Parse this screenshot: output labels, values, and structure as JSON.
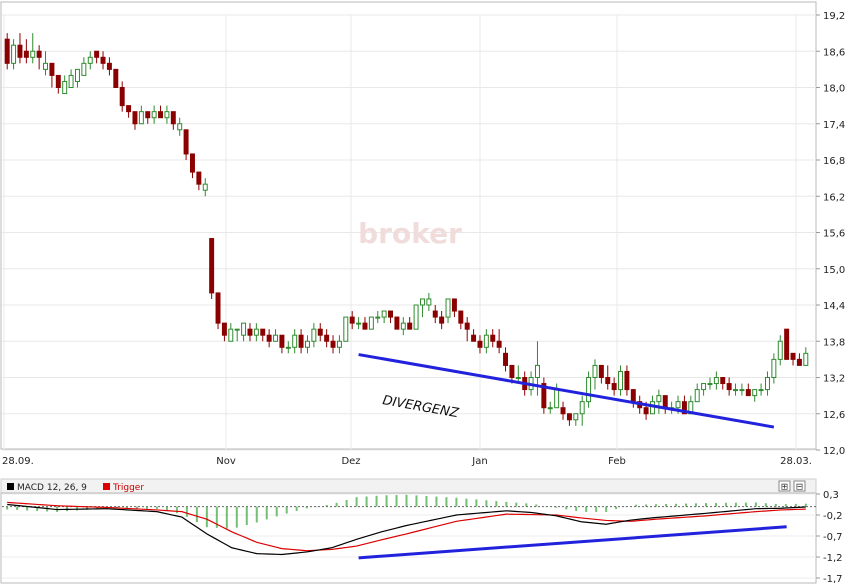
{
  "chart_data": [
    {
      "type": "candlestick",
      "title": "",
      "watermark": "broker",
      "annotation": "DIVERGENZ",
      "x_ticks": [
        "28.09.",
        "Nov",
        "Dez",
        "Jan",
        "Feb",
        "28.03."
      ],
      "y_ticks": [
        "19,2",
        "18,6",
        "18,0",
        "17,4",
        "16,8",
        "16,2",
        "15,6",
        "15,0",
        "14,4",
        "13,8",
        "13,2",
        "12,6",
        "12,0"
      ],
      "ylim": [
        12.0,
        19.2
      ],
      "grid": true,
      "colors": {
        "up": "#2e8b2e",
        "down": "#8b0000",
        "divergence": "#2222dd",
        "grid": "#e8e8e8"
      },
      "divergence_line": {
        "from": [
          55,
          13.58
        ],
        "to": [
          120,
          12.38
        ]
      },
      "candles": [
        [
          18.8,
          18.9,
          18.3,
          18.4
        ],
        [
          18.4,
          18.8,
          18.3,
          18.7
        ],
        [
          18.7,
          18.9,
          18.4,
          18.5
        ],
        [
          18.6,
          18.8,
          18.4,
          18.5
        ],
        [
          18.5,
          18.9,
          18.4,
          18.6
        ],
        [
          18.6,
          18.7,
          18.3,
          18.5
        ],
        [
          18.3,
          18.6,
          18.2,
          18.4
        ],
        [
          18.4,
          18.4,
          18.0,
          18.2
        ],
        [
          18.2,
          18.2,
          17.9,
          18.0
        ],
        [
          17.9,
          18.2,
          17.9,
          18.1
        ],
        [
          18.0,
          18.3,
          18.0,
          18.2
        ],
        [
          18.1,
          18.3,
          18.0,
          18.3
        ],
        [
          18.2,
          18.5,
          18.2,
          18.4
        ],
        [
          18.4,
          18.6,
          18.3,
          18.5
        ],
        [
          18.6,
          18.6,
          18.4,
          18.5
        ],
        [
          18.5,
          18.6,
          18.3,
          18.4
        ],
        [
          18.4,
          18.5,
          18.2,
          18.3
        ],
        [
          18.3,
          18.3,
          18.0,
          18.0
        ],
        [
          18.0,
          18.1,
          17.6,
          17.7
        ],
        [
          17.7,
          17.7,
          17.5,
          17.6
        ],
        [
          17.6,
          17.6,
          17.3,
          17.4
        ],
        [
          17.4,
          17.7,
          17.4,
          17.6
        ],
        [
          17.6,
          17.6,
          17.4,
          17.5
        ],
        [
          17.5,
          17.7,
          17.4,
          17.6
        ],
        [
          17.6,
          17.7,
          17.5,
          17.5
        ],
        [
          17.5,
          17.7,
          17.4,
          17.6
        ],
        [
          17.6,
          17.6,
          17.3,
          17.4
        ],
        [
          17.3,
          17.5,
          17.2,
          17.4
        ],
        [
          17.3,
          17.3,
          16.8,
          16.9
        ],
        [
          16.9,
          16.9,
          16.5,
          16.6
        ],
        [
          16.6,
          16.6,
          16.3,
          16.4
        ],
        [
          16.3,
          16.5,
          16.2,
          16.4
        ],
        [
          15.5,
          15.5,
          14.5,
          14.6
        ],
        [
          14.6,
          14.6,
          14.0,
          14.1
        ],
        [
          14.1,
          14.1,
          13.8,
          13.9
        ],
        [
          13.8,
          14.1,
          13.8,
          14.0
        ],
        [
          14.0,
          14.0,
          13.8,
          14.0
        ],
        [
          13.9,
          14.1,
          13.8,
          14.1
        ],
        [
          14.0,
          14.1,
          13.8,
          13.9
        ],
        [
          13.9,
          14.1,
          13.8,
          14.0
        ],
        [
          14.0,
          14.0,
          13.8,
          13.9
        ],
        [
          13.9,
          14.0,
          13.7,
          13.8
        ],
        [
          13.8,
          14.0,
          13.8,
          13.9
        ],
        [
          13.9,
          13.9,
          13.6,
          13.7
        ],
        [
          13.7,
          13.8,
          13.6,
          13.7
        ],
        [
          13.7,
          14.0,
          13.6,
          13.9
        ],
        [
          13.9,
          14.0,
          13.6,
          13.7
        ],
        [
          13.7,
          13.9,
          13.6,
          13.8
        ],
        [
          13.8,
          14.1,
          13.7,
          14.0
        ],
        [
          14.0,
          14.1,
          13.8,
          13.9
        ],
        [
          13.9,
          14.0,
          13.7,
          13.8
        ],
        [
          13.8,
          13.9,
          13.6,
          13.7
        ],
        [
          13.7,
          13.9,
          13.6,
          13.8
        ],
        [
          13.8,
          14.2,
          13.8,
          14.2
        ],
        [
          14.2,
          14.3,
          14.0,
          14.1
        ],
        [
          14.1,
          14.2,
          14.0,
          14.1
        ],
        [
          14.1,
          14.2,
          14.0,
          14.0
        ],
        [
          14.0,
          14.2,
          14.0,
          14.2
        ],
        [
          14.2,
          14.3,
          14.1,
          14.2
        ],
        [
          14.2,
          14.3,
          14.1,
          14.3
        ],
        [
          14.3,
          14.3,
          14.1,
          14.2
        ],
        [
          14.2,
          14.2,
          14.0,
          14.0
        ],
        [
          14.0,
          14.2,
          13.9,
          14.1
        ],
        [
          14.1,
          14.2,
          14.0,
          14.0
        ],
        [
          14.0,
          14.4,
          14.0,
          14.4
        ],
        [
          14.4,
          14.5,
          14.2,
          14.5
        ],
        [
          14.4,
          14.6,
          14.3,
          14.5
        ],
        [
          14.3,
          14.4,
          14.1,
          14.2
        ],
        [
          14.2,
          14.3,
          14.0,
          14.1
        ],
        [
          14.2,
          14.5,
          14.1,
          14.5
        ],
        [
          14.5,
          14.5,
          14.2,
          14.3
        ],
        [
          14.3,
          14.3,
          14.0,
          14.1
        ],
        [
          14.1,
          14.2,
          13.8,
          14.0
        ],
        [
          13.9,
          14.0,
          13.8,
          13.8
        ],
        [
          13.8,
          13.9,
          13.6,
          13.7
        ],
        [
          13.7,
          14.0,
          13.6,
          13.9
        ],
        [
          13.9,
          14.0,
          13.7,
          13.8
        ],
        [
          13.8,
          14.0,
          13.6,
          13.7
        ],
        [
          13.6,
          13.7,
          13.3,
          13.4
        ],
        [
          13.4,
          13.4,
          13.1,
          13.2
        ],
        [
          13.2,
          13.4,
          13.1,
          13.2
        ],
        [
          13.2,
          13.3,
          12.9,
          13.0
        ],
        [
          13.0,
          13.3,
          12.9,
          13.2
        ],
        [
          13.2,
          13.8,
          12.9,
          13.4
        ],
        [
          13.1,
          13.2,
          12.6,
          12.7
        ],
        [
          12.7,
          12.8,
          12.6,
          12.7
        ],
        [
          12.7,
          13.1,
          12.7,
          13.0
        ],
        [
          12.7,
          12.8,
          12.5,
          12.6
        ],
        [
          12.6,
          12.6,
          12.4,
          12.5
        ],
        [
          12.5,
          12.6,
          12.4,
          12.6
        ],
        [
          12.6,
          12.9,
          12.4,
          12.8
        ],
        [
          12.8,
          13.3,
          12.7,
          13.2
        ],
        [
          13.2,
          13.5,
          13.0,
          13.4
        ],
        [
          13.4,
          13.4,
          13.1,
          13.2
        ],
        [
          13.2,
          13.4,
          13.0,
          13.1
        ],
        [
          13.1,
          13.2,
          12.9,
          13.0
        ],
        [
          13.0,
          13.4,
          12.9,
          13.3
        ],
        [
          13.3,
          13.4,
          12.9,
          13.0
        ],
        [
          13.0,
          13.0,
          12.7,
          12.8
        ],
        [
          12.8,
          12.9,
          12.6,
          12.7
        ],
        [
          12.7,
          12.8,
          12.5,
          12.6
        ],
        [
          12.6,
          12.9,
          12.6,
          12.8
        ],
        [
          12.8,
          13.0,
          12.6,
          12.9
        ],
        [
          12.9,
          12.9,
          12.6,
          12.7
        ],
        [
          12.7,
          12.8,
          12.6,
          12.7
        ],
        [
          12.7,
          12.9,
          12.6,
          12.8
        ],
        [
          12.8,
          12.9,
          12.6,
          12.6
        ],
        [
          12.6,
          12.9,
          12.6,
          12.8
        ],
        [
          12.8,
          13.1,
          12.8,
          13.0
        ],
        [
          13.0,
          13.1,
          12.9,
          13.1
        ],
        [
          13.1,
          13.2,
          13.0,
          13.1
        ],
        [
          13.1,
          13.3,
          13.0,
          13.2
        ],
        [
          13.2,
          13.2,
          13.0,
          13.1
        ],
        [
          13.1,
          13.2,
          12.9,
          13.0
        ],
        [
          13.0,
          13.1,
          12.9,
          13.0
        ],
        [
          13.0,
          13.1,
          12.9,
          13.0
        ],
        [
          13.0,
          13.1,
          12.9,
          12.9
        ],
        [
          12.9,
          13.0,
          12.8,
          13.0
        ],
        [
          13.0,
          13.1,
          12.9,
          13.0
        ],
        [
          13.0,
          13.3,
          12.9,
          13.2
        ],
        [
          13.2,
          13.6,
          13.1,
          13.5
        ],
        [
          13.5,
          13.9,
          13.4,
          13.8
        ],
        [
          14.0,
          14.0,
          13.5,
          13.5
        ],
        [
          13.6,
          13.6,
          13.4,
          13.5
        ],
        [
          13.5,
          13.6,
          13.4,
          13.4
        ],
        [
          13.4,
          13.7,
          13.4,
          13.6
        ]
      ]
    },
    {
      "type": "line",
      "title": "",
      "legend": [
        {
          "name": "MACD 12, 26, 9",
          "color": "#000000"
        },
        {
          "name": "Trigger",
          "color": "#dd0000"
        }
      ],
      "y_ticks": [
        "0,3",
        "-0,2",
        "-0,7",
        "-1,2",
        "-1,7"
      ],
      "ylim": [
        -1.7,
        0.3
      ],
      "colors": {
        "macd": "#000000",
        "trigger": "#dd0000",
        "histogram": "#44aa44",
        "divergence": "#2222dd"
      },
      "divergence_line": {
        "from": [
          55,
          -1.22
        ],
        "to": [
          122,
          -0.48
        ]
      },
      "series": [
        {
          "name": "MACD 12, 26, 9",
          "points": [
            [
              0,
              0.05
            ],
            [
              10,
              -0.07
            ],
            [
              20,
              -0.05
            ],
            [
              30,
              -0.12
            ],
            [
              35,
              -0.25
            ],
            [
              40,
              -0.65
            ],
            [
              45,
              -0.98
            ],
            [
              50,
              -1.12
            ],
            [
              55,
              -1.14
            ],
            [
              60,
              -1.08
            ],
            [
              65,
              -0.98
            ],
            [
              70,
              -0.78
            ],
            [
              75,
              -0.6
            ],
            [
              80,
              -0.45
            ],
            [
              90,
              -0.2
            ],
            [
              100,
              -0.1
            ],
            [
              105,
              -0.14
            ],
            [
              110,
              -0.22
            ],
            [
              115,
              -0.36
            ],
            [
              120,
              -0.42
            ],
            [
              125,
              -0.32
            ],
            [
              130,
              -0.26
            ],
            [
              140,
              -0.16
            ],
            [
              150,
              -0.05
            ],
            [
              155,
              -0.04
            ],
            [
              160,
              -0.01
            ]
          ]
        },
        {
          "name": "Trigger",
          "points": [
            [
              0,
              0.1
            ],
            [
              10,
              0.02
            ],
            [
              20,
              -0.02
            ],
            [
              30,
              -0.08
            ],
            [
              35,
              -0.12
            ],
            [
              40,
              -0.3
            ],
            [
              45,
              -0.6
            ],
            [
              50,
              -0.85
            ],
            [
              55,
              -1.0
            ],
            [
              60,
              -1.05
            ],
            [
              65,
              -1.02
            ],
            [
              70,
              -0.94
            ],
            [
              75,
              -0.79
            ],
            [
              80,
              -0.65
            ],
            [
              90,
              -0.35
            ],
            [
              100,
              -0.18
            ],
            [
              110,
              -0.2
            ],
            [
              115,
              -0.27
            ],
            [
              120,
              -0.33
            ],
            [
              125,
              -0.35
            ],
            [
              130,
              -0.3
            ],
            [
              140,
              -0.22
            ],
            [
              150,
              -0.12
            ],
            [
              155,
              -0.08
            ],
            [
              160,
              -0.06
            ]
          ]
        }
      ]
    }
  ],
  "toolbar": {
    "expand_icon_glyph": "⊞",
    "shrink_icon_glyph": "⊟"
  }
}
